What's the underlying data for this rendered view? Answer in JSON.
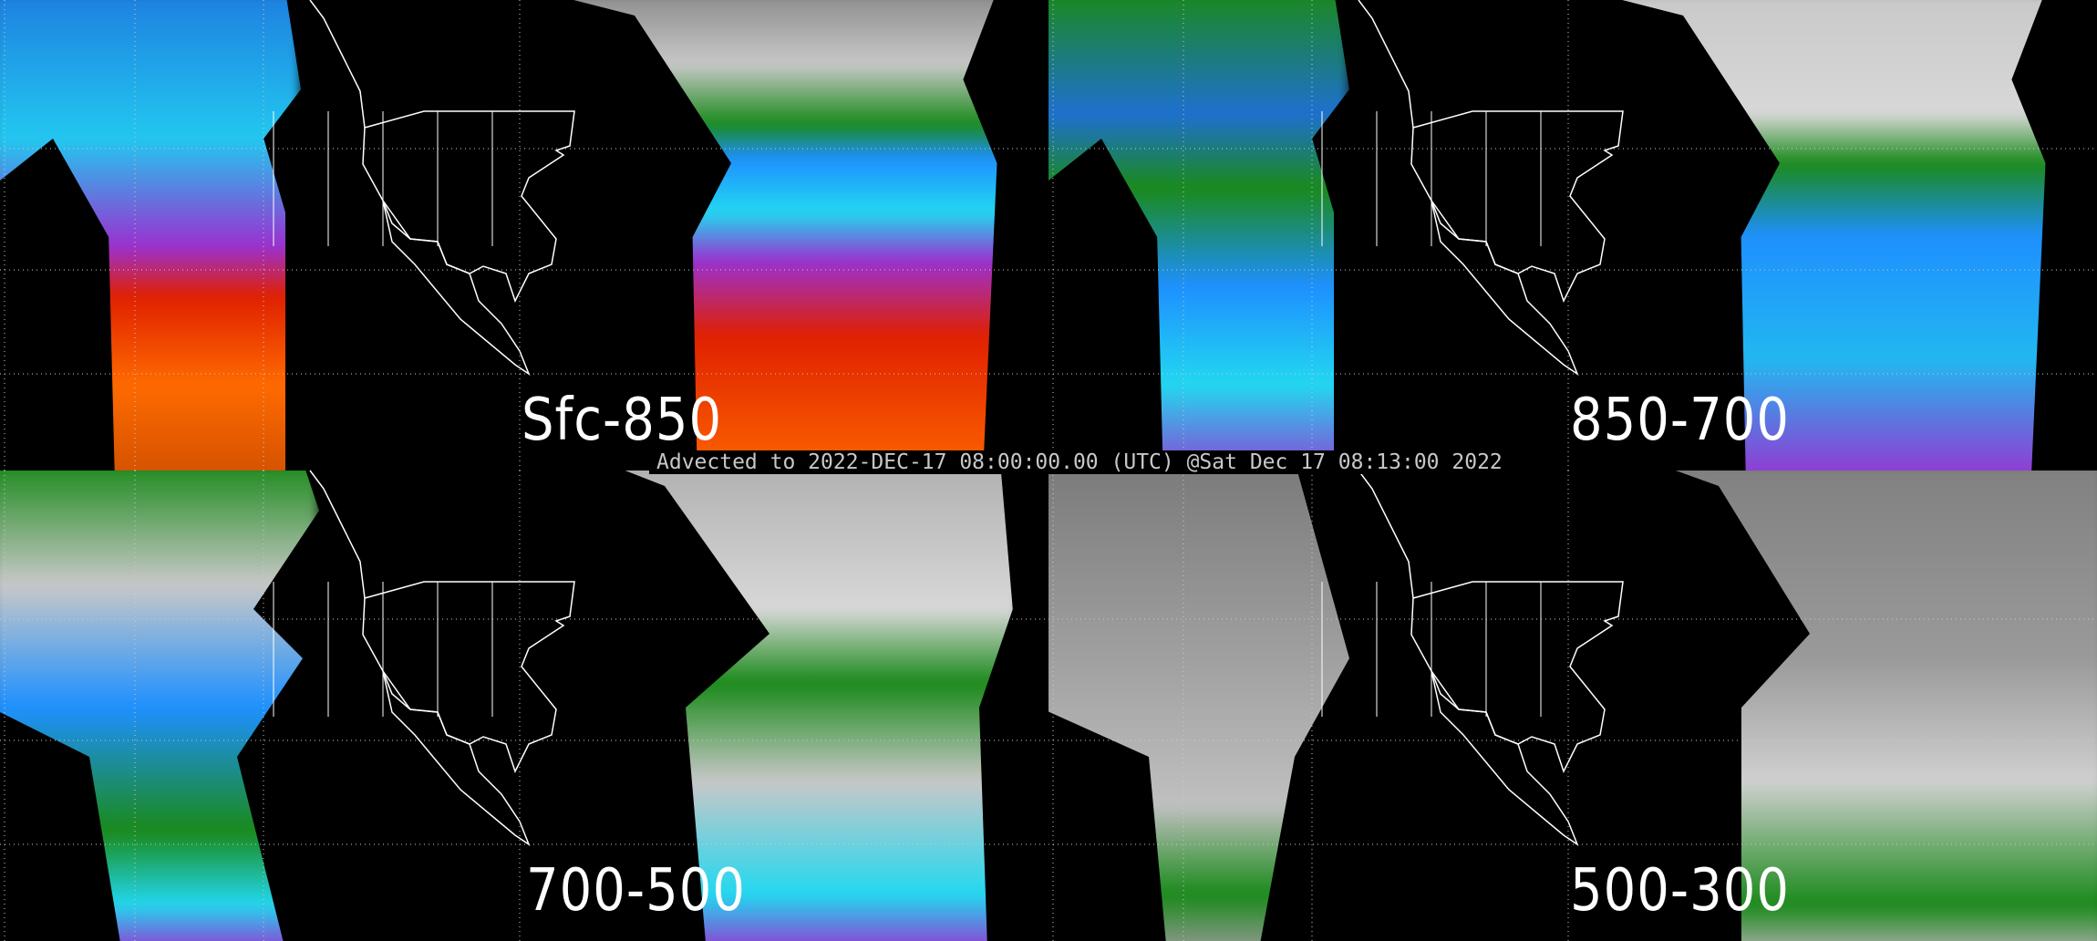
{
  "caption": "Advected to 2022-DEC-17 08:00:00.00 (UTC) @Sat Dec 17 08:13:00 2022",
  "panels": [
    {
      "label": "Sfc-850",
      "palette": [
        "#1e90ff",
        "#22d8f0",
        "#9b30d0",
        "#e02000",
        "#ff7a00"
      ]
    },
    {
      "label": "850-700",
      "palette": [
        "#1a8a1a",
        "#1e90ff",
        "#22d8f0",
        "#9b30d0",
        "#c8c8c8"
      ]
    },
    {
      "label": "700-500",
      "palette": [
        "#1a8a1a",
        "#c8c8c8",
        "#1e90ff",
        "#22d8f0",
        "#9b30d0"
      ]
    },
    {
      "label": "500-300",
      "palette": [
        "#8a8a8a",
        "#b0b0b0",
        "#d0d0d0",
        "#1a8a1a",
        "#000000"
      ]
    }
  ],
  "map_line_color": "#ffffff",
  "grid_color": "#cccccc"
}
